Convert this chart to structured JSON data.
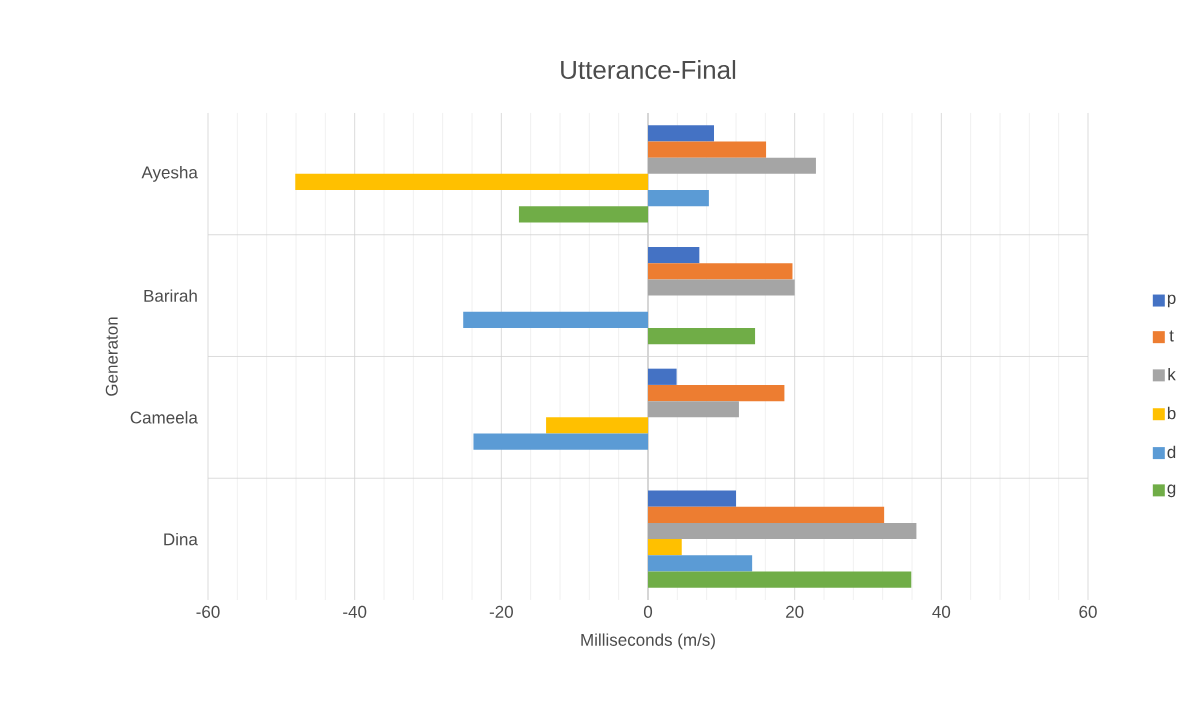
{
  "chart_data": {
    "type": "bar",
    "orientation": "horizontal",
    "title": "Utterance-Final",
    "xlabel": "Milliseconds (m/s)",
    "ylabel": "Generaton",
    "categories": [
      "Ayesha",
      "Barirah",
      "Cameela",
      "Dina"
    ],
    "series": [
      {
        "name": "p",
        "color": "#4472c4",
        "values": [
          9.0,
          7.0,
          3.9,
          12.0
        ]
      },
      {
        "name": "t",
        "color": "#ed7d31",
        "values": [
          16.1,
          19.7,
          18.6,
          32.2
        ]
      },
      {
        "name": "k",
        "color": "#a5a5a5",
        "values": [
          22.9,
          20.0,
          12.4,
          36.6
        ]
      },
      {
        "name": "b",
        "color": "#ffc000",
        "values": [
          -48.1,
          null,
          -13.9,
          4.6
        ]
      },
      {
        "name": "d",
        "color": "#5b9bd5",
        "values": [
          8.3,
          -25.2,
          -23.8,
          14.2
        ]
      },
      {
        "name": "g",
        "color": "#70ad47",
        "values": [
          -17.6,
          14.6,
          null,
          35.9
        ]
      }
    ],
    "xlim": [
      -60,
      60
    ],
    "xticks": [
      -60,
      -40,
      -20,
      0,
      20,
      40,
      60
    ],
    "grid": true,
    "legend": "right"
  }
}
